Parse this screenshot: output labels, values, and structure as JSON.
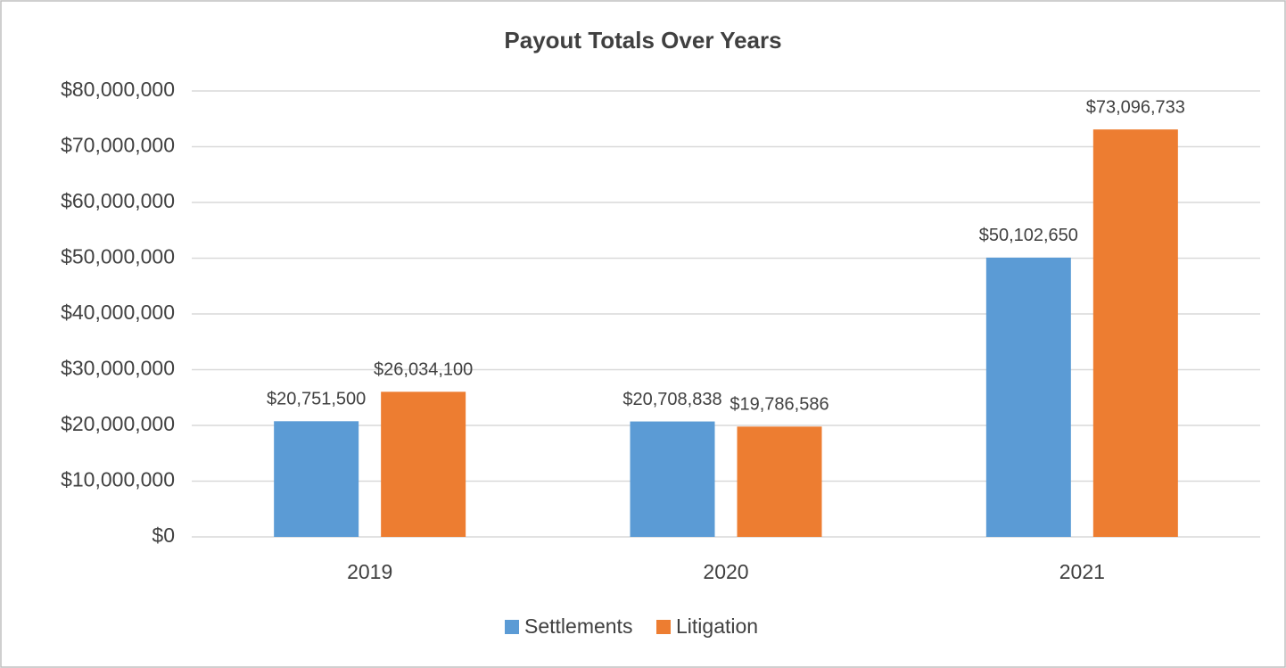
{
  "chart_data": {
    "type": "bar",
    "title": "Payout Totals Over Years",
    "categories": [
      "2019",
      "2020",
      "2021"
    ],
    "series": [
      {
        "name": "Settlements",
        "color": "#5b9bd5",
        "values": [
          20751500,
          20708838,
          50102650
        ],
        "value_labels": [
          "$20,751,500",
          "$20,708,838",
          "$50,102,650"
        ]
      },
      {
        "name": "Litigation",
        "color": "#ed7d31",
        "values": [
          26034100,
          19786586,
          73096733
        ],
        "value_labels": [
          "$26,034,100",
          "$19,786,586",
          "$73,096,733"
        ]
      }
    ],
    "ylim": [
      0,
      80000000
    ],
    "yticks": [
      {
        "value": 0,
        "label": "$0"
      },
      {
        "value": 10000000,
        "label": "$10,000,000"
      },
      {
        "value": 20000000,
        "label": "$20,000,000"
      },
      {
        "value": 30000000,
        "label": "$30,000,000"
      },
      {
        "value": 40000000,
        "label": "$40,000,000"
      },
      {
        "value": 50000000,
        "label": "$50,000,000"
      },
      {
        "value": 60000000,
        "label": "$60,000,000"
      },
      {
        "value": 70000000,
        "label": "$70,000,000"
      },
      {
        "value": 80000000,
        "label": "$80,000,000"
      }
    ],
    "grid": true,
    "legend": "bottom"
  }
}
